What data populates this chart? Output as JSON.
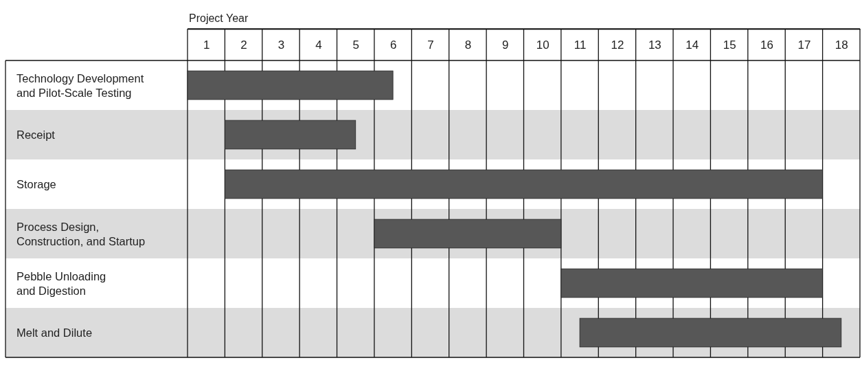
{
  "chart_data": {
    "type": "bar",
    "orientation": "horizontal",
    "xlabel": "Project Year",
    "categories": [
      "Technology Development\nand Pilot-Scale Testing",
      "Receipt",
      "Storage",
      "Process Design,\nConstruction, and Startup",
      "Pebble Unloading\nand Digestion",
      "Melt and Dilute"
    ],
    "base": [
      0,
      1,
      1,
      5,
      10,
      10.5
    ],
    "values": [
      5.5,
      3.5,
      16,
      5,
      7,
      7
    ],
    "color": "#575757",
    "xlim": [
      0,
      18
    ],
    "xticks": [
      {
        "value": 0,
        "label": null
      },
      {
        "value": 0.5,
        "label": "1"
      },
      {
        "value": 1,
        "label": null
      },
      {
        "value": 1.5,
        "label": "2"
      },
      {
        "value": 2,
        "label": null
      },
      {
        "value": 2.5,
        "label": "3"
      },
      {
        "value": 3,
        "label": null
      },
      {
        "value": 3.5,
        "label": "4"
      },
      {
        "value": 4,
        "label": null
      },
      {
        "value": 4.5,
        "label": "5"
      },
      {
        "value": 5,
        "label": null
      },
      {
        "value": 5.5,
        "label": "6"
      },
      {
        "value": 6,
        "label": null
      },
      {
        "value": 6.5,
        "label": "7"
      },
      {
        "value": 7,
        "label": null
      },
      {
        "value": 7.5,
        "label": "8"
      },
      {
        "value": 8,
        "label": null
      },
      {
        "value": 8.5,
        "label": "9"
      },
      {
        "value": 9,
        "label": null
      },
      {
        "value": 9.5,
        "label": "10"
      },
      {
        "value": 10,
        "label": null
      },
      {
        "value": 10.5,
        "label": "11"
      },
      {
        "value": 11,
        "label": null
      },
      {
        "value": 11.5,
        "label": "12"
      },
      {
        "value": 12,
        "label": null
      },
      {
        "value": 12.5,
        "label": "13"
      },
      {
        "value": 13,
        "label": null
      },
      {
        "value": 13.5,
        "label": "14"
      },
      {
        "value": 14,
        "label": null
      },
      {
        "value": 14.5,
        "label": "15"
      },
      {
        "value": 15,
        "label": null
      },
      {
        "value": 15.5,
        "label": "16"
      },
      {
        "value": 16,
        "label": null
      },
      {
        "value": 16.5,
        "label": "17"
      },
      {
        "value": 17,
        "label": null
      },
      {
        "value": 17.5,
        "label": "18"
      },
      {
        "value": 18,
        "label": null
      }
    ],
    "grid": "x"
  }
}
